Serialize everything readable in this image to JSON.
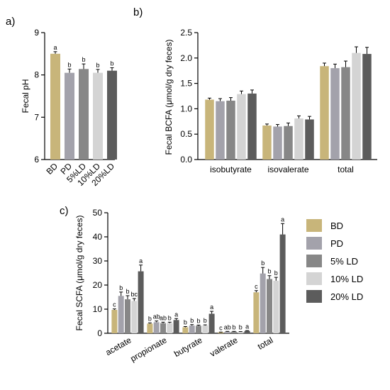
{
  "colors": {
    "BD": "#c8b57a",
    "PD": "#a3a2ab",
    "LD5": "#878787",
    "LD10": "#d4d4d4",
    "LD20": "#5c5c5c",
    "errorbar": "#000000"
  },
  "legend": {
    "position": "right of panel c",
    "items": [
      {
        "label": "BD",
        "color": "#c8b57a"
      },
      {
        "label": "PD",
        "color": "#a3a2ab"
      },
      {
        "label": "5% LD",
        "color": "#878787"
      },
      {
        "label": "10% LD",
        "color": "#d4d4d4"
      },
      {
        "label": "20% LD",
        "color": "#5c5c5c"
      }
    ]
  },
  "chart_data": [
    {
      "panel": "a)",
      "type": "bar",
      "title": "",
      "ylabel": "Fecal pH",
      "xlabel": "",
      "ylim": [
        6,
        9
      ],
      "yticks": [
        6,
        7,
        8,
        9
      ],
      "categories": [
        "BD",
        "PD",
        "5%LD",
        "10%LD",
        "20%LD"
      ],
      "colors": [
        "#c8b57a",
        "#a3a2ab",
        "#878787",
        "#d4d4d4",
        "#5c5c5c"
      ],
      "values": [
        8.5,
        8.05,
        8.14,
        8.05,
        8.1
      ],
      "errors": [
        0.05,
        0.09,
        0.12,
        0.08,
        0.07
      ],
      "significance": [
        "a",
        "b",
        "b",
        "b",
        "b"
      ]
    },
    {
      "panel": "b)",
      "type": "bar",
      "title": "",
      "ylabel": "Fecal BCFA (μmol/g dry feces)",
      "xlabel": "",
      "ylim": [
        0,
        2.5
      ],
      "yticks": [
        0.0,
        0.5,
        1.0,
        1.5,
        2.0,
        2.5
      ],
      "categories": [
        "isobutyrate",
        "isovalerate",
        "total"
      ],
      "series": [
        {
          "key": "BD",
          "values": [
            1.18,
            0.67,
            1.84
          ],
          "errors": [
            0.03,
            0.03,
            0.06
          ]
        },
        {
          "key": "PD",
          "values": [
            1.15,
            0.65,
            1.8
          ],
          "errors": [
            0.05,
            0.04,
            0.08
          ]
        },
        {
          "key": "LD5",
          "values": [
            1.16,
            0.66,
            1.82
          ],
          "errors": [
            0.06,
            0.06,
            0.12
          ]
        },
        {
          "key": "LD10",
          "values": [
            1.29,
            0.81,
            2.1
          ],
          "errors": [
            0.06,
            0.05,
            0.12
          ]
        },
        {
          "key": "LD20",
          "values": [
            1.3,
            0.79,
            2.08
          ],
          "errors": [
            0.07,
            0.06,
            0.13
          ]
        }
      ]
    },
    {
      "panel": "c)",
      "type": "bar",
      "title": "",
      "ylabel": "Fecal SCFA (μmol/g dry feces)",
      "xlabel": "",
      "ylim": [
        0,
        50
      ],
      "yticks": [
        0,
        10,
        20,
        30,
        40,
        50
      ],
      "categories": [
        "acetate",
        "propionate",
        "butyrate",
        "valerate",
        "total"
      ],
      "series": [
        {
          "key": "BD",
          "values": [
            9.7,
            4.0,
            2.5,
            0.4,
            17.0
          ],
          "errors": [
            0.4,
            0.3,
            0.3,
            0.1,
            0.7
          ],
          "significance": [
            "c",
            "b",
            "b",
            "c",
            "c"
          ]
        },
        {
          "key": "PD",
          "values": [
            15.5,
            4.6,
            3.2,
            0.7,
            24.8
          ],
          "errors": [
            1.6,
            0.5,
            0.4,
            0.1,
            2.5
          ],
          "significance": [
            "b",
            "ab",
            "b",
            "ab",
            "b"
          ]
        },
        {
          "key": "LD5",
          "values": [
            14.1,
            4.2,
            3.1,
            0.7,
            22.5
          ],
          "errors": [
            1.5,
            0.4,
            0.3,
            0.1,
            1.4
          ],
          "significance": [
            "b",
            "ab",
            "b",
            "b",
            "b"
          ]
        },
        {
          "key": "LD10",
          "values": [
            13.4,
            4.2,
            3.2,
            0.6,
            21.8
          ],
          "errors": [
            1.0,
            0.4,
            0.3,
            0.1,
            1.4
          ],
          "significance": [
            "bc",
            "b",
            "b",
            "b",
            "b"
          ]
        },
        {
          "key": "LD20",
          "values": [
            25.7,
            5.5,
            8.1,
            1.0,
            41.0
          ],
          "errors": [
            2.6,
            0.6,
            1.0,
            0.1,
            4.5
          ],
          "significance": [
            "a",
            "a",
            "a",
            "a",
            "a"
          ]
        }
      ]
    }
  ]
}
